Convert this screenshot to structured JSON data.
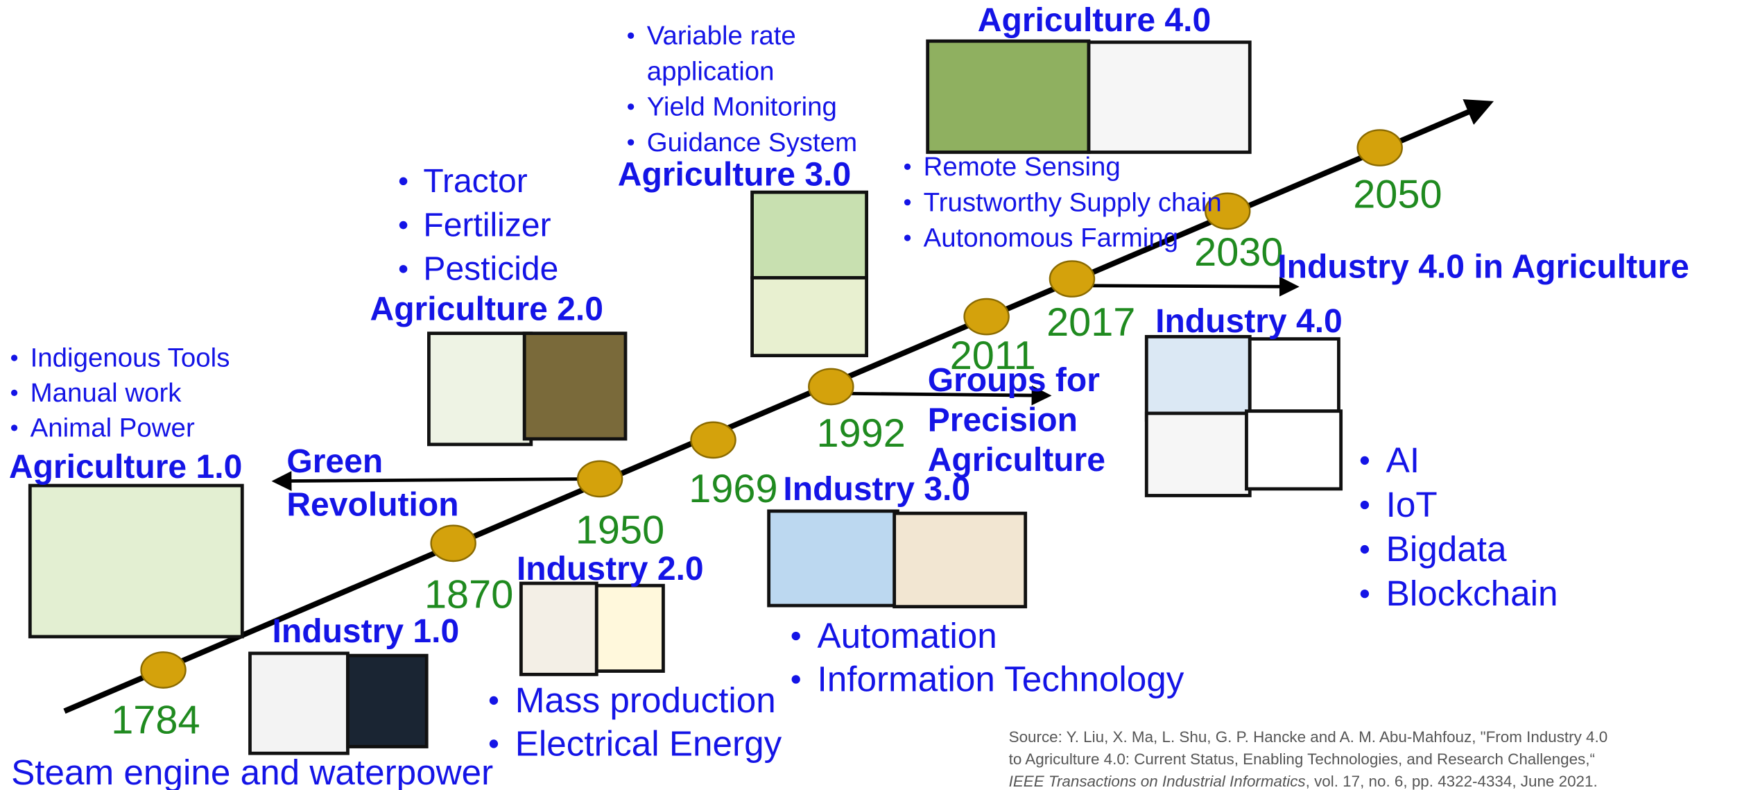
{
  "timeline": {
    "years": [
      "1784",
      "1870",
      "1950",
      "1969",
      "1992",
      "2011",
      "2017",
      "2030",
      "2050"
    ],
    "agriculture": [
      {
        "title": "Agriculture 1.0",
        "items": [
          "Indigenous Tools",
          "Manual work",
          "Animal Power"
        ]
      },
      {
        "title": "Agriculture 2.0",
        "items": [
          "Tractor",
          "Fertilizer",
          "Pesticide"
        ]
      },
      {
        "title": "Agriculture 3.0",
        "items": [
          "Variable rate",
          "application",
          "Yield Monitoring",
          "Guidance System"
        ]
      },
      {
        "title": "Agriculture 4.0",
        "items": [
          "Remote Sensing",
          "Trustworthy Supply chain",
          "Autonomous Farming"
        ]
      }
    ],
    "industry": [
      {
        "title": "Industry 1.0",
        "items": [
          "Steam engine and waterpower"
        ]
      },
      {
        "title": "Industry 2.0",
        "items": [
          "Mass production",
          "Electrical Energy"
        ]
      },
      {
        "title": "Industry 3.0",
        "items": [
          "Automation",
          "Information Technology"
        ]
      },
      {
        "title": "Industry 4.0",
        "items": [
          "AI",
          "IoT",
          "Bigdata",
          "Blockchain"
        ]
      }
    ],
    "milestones": [
      {
        "lines": [
          "Green",
          "Revolution"
        ]
      },
      {
        "lines": [
          "Groups for",
          "Precision",
          "Agriculture"
        ]
      },
      {
        "lines": [
          "Industry 4.0 in Agriculture"
        ]
      }
    ]
  },
  "source": {
    "lines": [
      "Source: Y. Liu, X. Ma, L. Shu, G. P. Hancke and A. M. Abu-Mahfouz, \"From Industry 4.0",
      "to Agriculture 4.0: Current Status, Enabling Technologies, and Research Challenges,“"
    ],
    "journal": "IEEE Transactions on Industrial Informatics",
    "details": ", vol. 17, no. 6, pp. 4322-4334, June 2021."
  }
}
